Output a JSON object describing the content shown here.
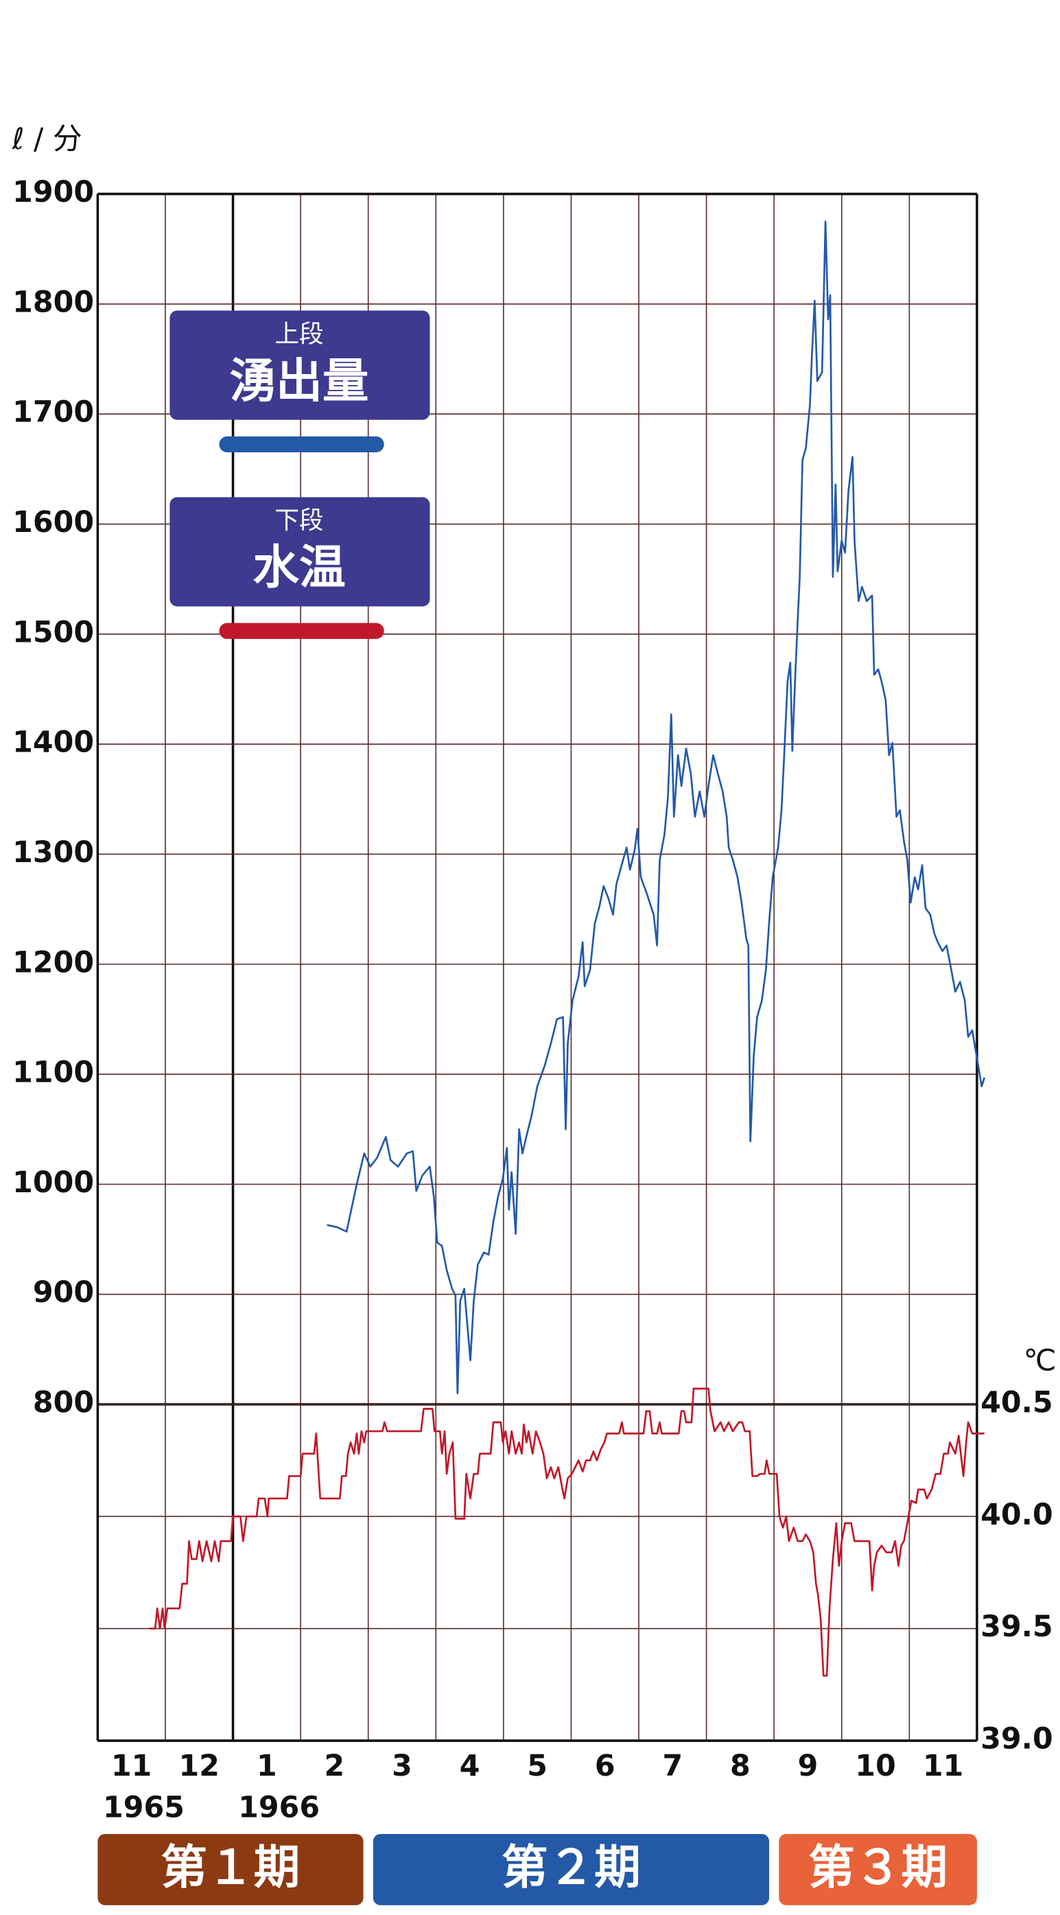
{
  "chart_data": {
    "type": "line",
    "ylabel": "ℓ / 分",
    "y2label": "℃",
    "categories": [
      "11",
      "12",
      "1",
      "2",
      "3",
      "4",
      "5",
      "6",
      "7",
      "8",
      "9",
      "10",
      "11"
    ],
    "years": [
      "1965",
      null,
      "1966",
      null,
      null,
      null,
      null,
      null,
      null,
      null,
      null,
      null,
      null
    ],
    "xlim": [
      0,
      13
    ],
    "xticks": [
      0,
      1,
      2,
      3,
      4,
      5,
      6,
      7,
      8,
      9,
      10,
      11,
      12,
      13
    ],
    "ylim": [
      800,
      1900
    ],
    "yticks": [
      800,
      900,
      1000,
      1100,
      1200,
      1300,
      1400,
      1500,
      1600,
      1700,
      1800,
      1900
    ],
    "y2lim": [
      39.0,
      40.5
    ],
    "y2ticks": [
      {
        "value": 39.0,
        "label": "39.0"
      },
      39.5,
      {
        "value": 40.0,
        "label": "40.0"
      },
      40.5
    ],
    "grid": true,
    "series": [
      {
        "name": "湧出量",
        "caption": "上段",
        "color": "#2459a8",
        "axis": "y",
        "x": [
          3.39,
          3.54,
          3.68,
          3.76,
          3.83,
          3.94,
          4.03,
          4.13,
          4.26,
          4.33,
          4.44,
          4.57,
          4.66,
          4.71,
          4.8,
          4.91,
          4.97,
          5.02,
          5.09,
          5.16,
          5.24,
          5.29,
          5.32,
          5.36,
          5.42,
          5.51,
          5.56,
          5.62,
          5.71,
          5.78,
          5.85,
          5.92,
          5.99,
          6.05,
          6.08,
          6.12,
          6.18,
          6.23,
          6.28,
          6.34,
          6.41,
          6.5,
          6.61,
          6.7,
          6.79,
          6.88,
          6.92,
          6.95,
          7.02,
          7.11,
          7.17,
          7.2,
          7.28,
          7.35,
          7.42,
          7.48,
          7.55,
          7.62,
          7.67,
          7.76,
          7.82,
          7.87,
          7.94,
          7.98,
          8.03,
          8.12,
          8.22,
          8.27,
          8.31,
          8.38,
          8.43,
          8.48,
          8.52,
          8.58,
          8.63,
          8.7,
          8.77,
          8.83,
          8.9,
          8.97,
          9.03,
          9.1,
          9.17,
          9.24,
          9.3,
          9.33,
          9.39,
          9.46,
          9.52,
          9.59,
          9.62,
          9.65,
          9.7,
          9.75,
          9.82,
          9.88,
          9.93,
          9.98,
          10.06,
          10.11,
          10.15,
          10.2,
          10.24,
          10.27,
          10.31,
          10.35,
          10.38,
          10.42,
          10.47,
          10.53,
          10.56,
          10.6,
          10.64,
          10.71,
          10.76,
          10.8,
          10.83,
          10.87,
          10.91,
          10.94,
          11.0,
          11.05,
          11.1,
          11.16,
          11.19,
          11.25,
          11.3,
          11.37,
          11.45,
          11.48,
          11.54,
          11.59,
          11.65,
          11.7,
          11.75,
          11.81,
          11.86,
          11.92,
          11.97,
          12.02,
          12.08,
          12.13,
          12.19,
          12.24,
          12.31,
          12.37,
          12.42,
          12.49,
          12.55,
          12.62,
          12.68,
          12.75,
          12.82,
          12.87,
          12.93,
          12.98,
          13.04,
          13.07,
          13.11
        ],
        "values": [
          963,
          961,
          957,
          980,
          1000,
          1028,
          1016,
          1024,
          1043,
          1022,
          1016,
          1028,
          1030,
          994,
          1008,
          1016,
          989,
          947,
          944,
          922,
          905,
          899,
          810,
          894,
          905,
          840,
          894,
          927,
          938,
          936,
          966,
          989,
          1005,
          1033,
          977,
          1011,
          955,
          1050,
          1028,
          1044,
          1061,
          1089,
          1108,
          1128,
          1150,
          1152,
          1050,
          1128,
          1167,
          1189,
          1220,
          1180,
          1195,
          1237,
          1253,
          1271,
          1260,
          1245,
          1273,
          1293,
          1306,
          1286,
          1304,
          1323,
          1279,
          1264,
          1245,
          1217,
          1295,
          1318,
          1351,
          1427,
          1334,
          1390,
          1362,
          1396,
          1373,
          1334,
          1357,
          1334,
          1362,
          1390,
          1373,
          1357,
          1334,
          1306,
          1295,
          1279,
          1256,
          1223,
          1217,
          1039,
          1117,
          1152,
          1167,
          1195,
          1240,
          1279,
          1306,
          1340,
          1390,
          1457,
          1474,
          1394,
          1457,
          1513,
          1552,
          1658,
          1669,
          1708,
          1753,
          1803,
          1730,
          1738,
          1875,
          1786,
          1808,
          1552,
          1636,
          1557,
          1585,
          1574,
          1630,
          1661,
          1585,
          1530,
          1543,
          1530,
          1535,
          1463,
          1468,
          1457,
          1440,
          1390,
          1401,
          1334,
          1340,
          1312,
          1295,
          1256,
          1279,
          1268,
          1290,
          1251,
          1245,
          1228,
          1220,
          1212,
          1217,
          1195,
          1175,
          1184,
          1167,
          1134,
          1140,
          1122,
          1100,
          1089,
          1097
        ]
      },
      {
        "name": "水温",
        "caption": "下段",
        "color": "#c0182a",
        "axis": "y2",
        "x": [
          0.76,
          0.85,
          0.88,
          0.92,
          0.96,
          0.99,
          1.03,
          1.21,
          1.25,
          1.32,
          1.35,
          1.39,
          1.46,
          1.5,
          1.55,
          1.61,
          1.68,
          1.73,
          1.79,
          1.82,
          1.97,
          2.0,
          2.11,
          2.15,
          2.2,
          2.35,
          2.38,
          2.47,
          2.51,
          2.53,
          2.8,
          2.83,
          3.0,
          3.03,
          3.2,
          3.23,
          3.29,
          3.58,
          3.61,
          3.67,
          3.7,
          3.74,
          3.79,
          3.83,
          3.86,
          3.9,
          3.94,
          3.97,
          4.21,
          4.24,
          4.28,
          4.78,
          4.82,
          4.95,
          4.98,
          5.06,
          5.09,
          5.13,
          5.16,
          5.2,
          5.25,
          5.29,
          5.42,
          5.45,
          5.51,
          5.56,
          5.62,
          5.65,
          5.81,
          5.85,
          5.96,
          5.99,
          6.03,
          6.08,
          6.12,
          6.18,
          6.23,
          6.27,
          6.3,
          6.34,
          6.37,
          6.43,
          6.48,
          6.54,
          6.59,
          6.64,
          6.7,
          6.75,
          6.81,
          6.86,
          6.9,
          6.95,
          7.01,
          7.06,
          7.11,
          7.17,
          7.22,
          7.28,
          7.33,
          7.38,
          7.44,
          7.49,
          7.53,
          7.71,
          7.75,
          7.78,
          8.07,
          8.11,
          8.16,
          8.2,
          8.27,
          8.31,
          8.34,
          8.59,
          8.63,
          8.67,
          8.7,
          8.78,
          8.81,
          9.03,
          9.06,
          9.12,
          9.21,
          9.26,
          9.33,
          9.39,
          9.48,
          9.53,
          9.57,
          9.64,
          9.68,
          9.75,
          9.79,
          9.86,
          9.89,
          9.93,
          10.04,
          10.08,
          10.13,
          10.18,
          10.22,
          10.29,
          10.35,
          10.42,
          10.47,
          10.53,
          10.58,
          10.62,
          10.65,
          10.69,
          10.73,
          10.78,
          10.82,
          10.87,
          10.92,
          10.96,
          11.0,
          11.05,
          11.14,
          11.19,
          11.41,
          11.45,
          11.48,
          11.52,
          11.59,
          11.66,
          11.74,
          11.79,
          11.84,
          11.88,
          11.92,
          11.97,
          12.03,
          12.1,
          12.13,
          12.22,
          12.26,
          12.33,
          12.39,
          12.46,
          12.51,
          12.57,
          12.6,
          12.68,
          12.73,
          12.8,
          12.84,
          12.87,
          12.93,
          13.11
        ],
        "values": [
          39.5,
          39.5,
          39.59,
          39.5,
          39.59,
          39.5,
          39.59,
          39.59,
          39.7,
          39.7,
          39.89,
          39.81,
          39.81,
          39.89,
          39.8,
          39.89,
          39.8,
          39.89,
          39.8,
          39.89,
          39.89,
          40.0,
          40.0,
          39.89,
          40.0,
          40.0,
          40.08,
          40.08,
          40.0,
          40.08,
          40.08,
          40.18,
          40.18,
          40.28,
          40.28,
          40.37,
          40.08,
          40.08,
          40.18,
          40.18,
          40.28,
          40.33,
          40.28,
          40.37,
          40.28,
          40.38,
          40.33,
          40.38,
          40.38,
          40.42,
          40.38,
          40.38,
          40.48,
          40.48,
          40.38,
          40.38,
          40.28,
          40.38,
          40.19,
          40.28,
          40.33,
          39.99,
          39.99,
          40.19,
          40.08,
          40.19,
          40.19,
          40.28,
          40.28,
          40.42,
          40.42,
          40.33,
          40.38,
          40.28,
          40.38,
          40.28,
          40.33,
          40.28,
          40.41,
          40.33,
          40.38,
          40.28,
          40.38,
          40.33,
          40.28,
          40.17,
          40.22,
          40.17,
          40.22,
          40.14,
          40.08,
          40.17,
          40.19,
          40.22,
          40.25,
          40.2,
          40.25,
          40.25,
          40.29,
          40.25,
          40.3,
          40.33,
          40.37,
          40.37,
          40.42,
          40.37,
          40.37,
          40.47,
          40.47,
          40.37,
          40.37,
          40.42,
          40.37,
          40.37,
          40.47,
          40.47,
          40.42,
          40.42,
          40.57,
          40.57,
          40.47,
          40.38,
          40.42,
          40.38,
          40.42,
          40.38,
          40.42,
          40.42,
          40.38,
          40.38,
          40.18,
          40.18,
          40.19,
          40.19,
          40.25,
          40.19,
          40.19,
          40.0,
          39.95,
          40.0,
          39.89,
          39.95,
          39.89,
          39.89,
          39.92,
          39.89,
          39.84,
          39.7,
          39.65,
          39.54,
          39.29,
          39.29,
          39.59,
          39.81,
          39.97,
          39.78,
          39.89,
          39.97,
          39.97,
          39.89,
          39.89,
          39.67,
          39.78,
          39.84,
          39.87,
          39.84,
          39.84,
          39.89,
          39.78,
          39.87,
          39.89,
          39.97,
          40.07,
          40.06,
          40.12,
          40.12,
          40.08,
          40.12,
          40.19,
          40.19,
          40.28,
          40.28,
          40.33,
          40.28,
          40.36,
          40.18,
          40.33,
          40.42,
          40.37,
          40.37
        ]
      }
    ],
    "periods": [
      {
        "label": "第１期",
        "color": "#8b3a12",
        "start": 0,
        "end": 4
      },
      {
        "label": "第２期",
        "color": "#2459a8",
        "start": 4,
        "end": 10
      },
      {
        "label": "第３期",
        "color": "#e8623a",
        "start": 10,
        "end": 13
      }
    ]
  }
}
